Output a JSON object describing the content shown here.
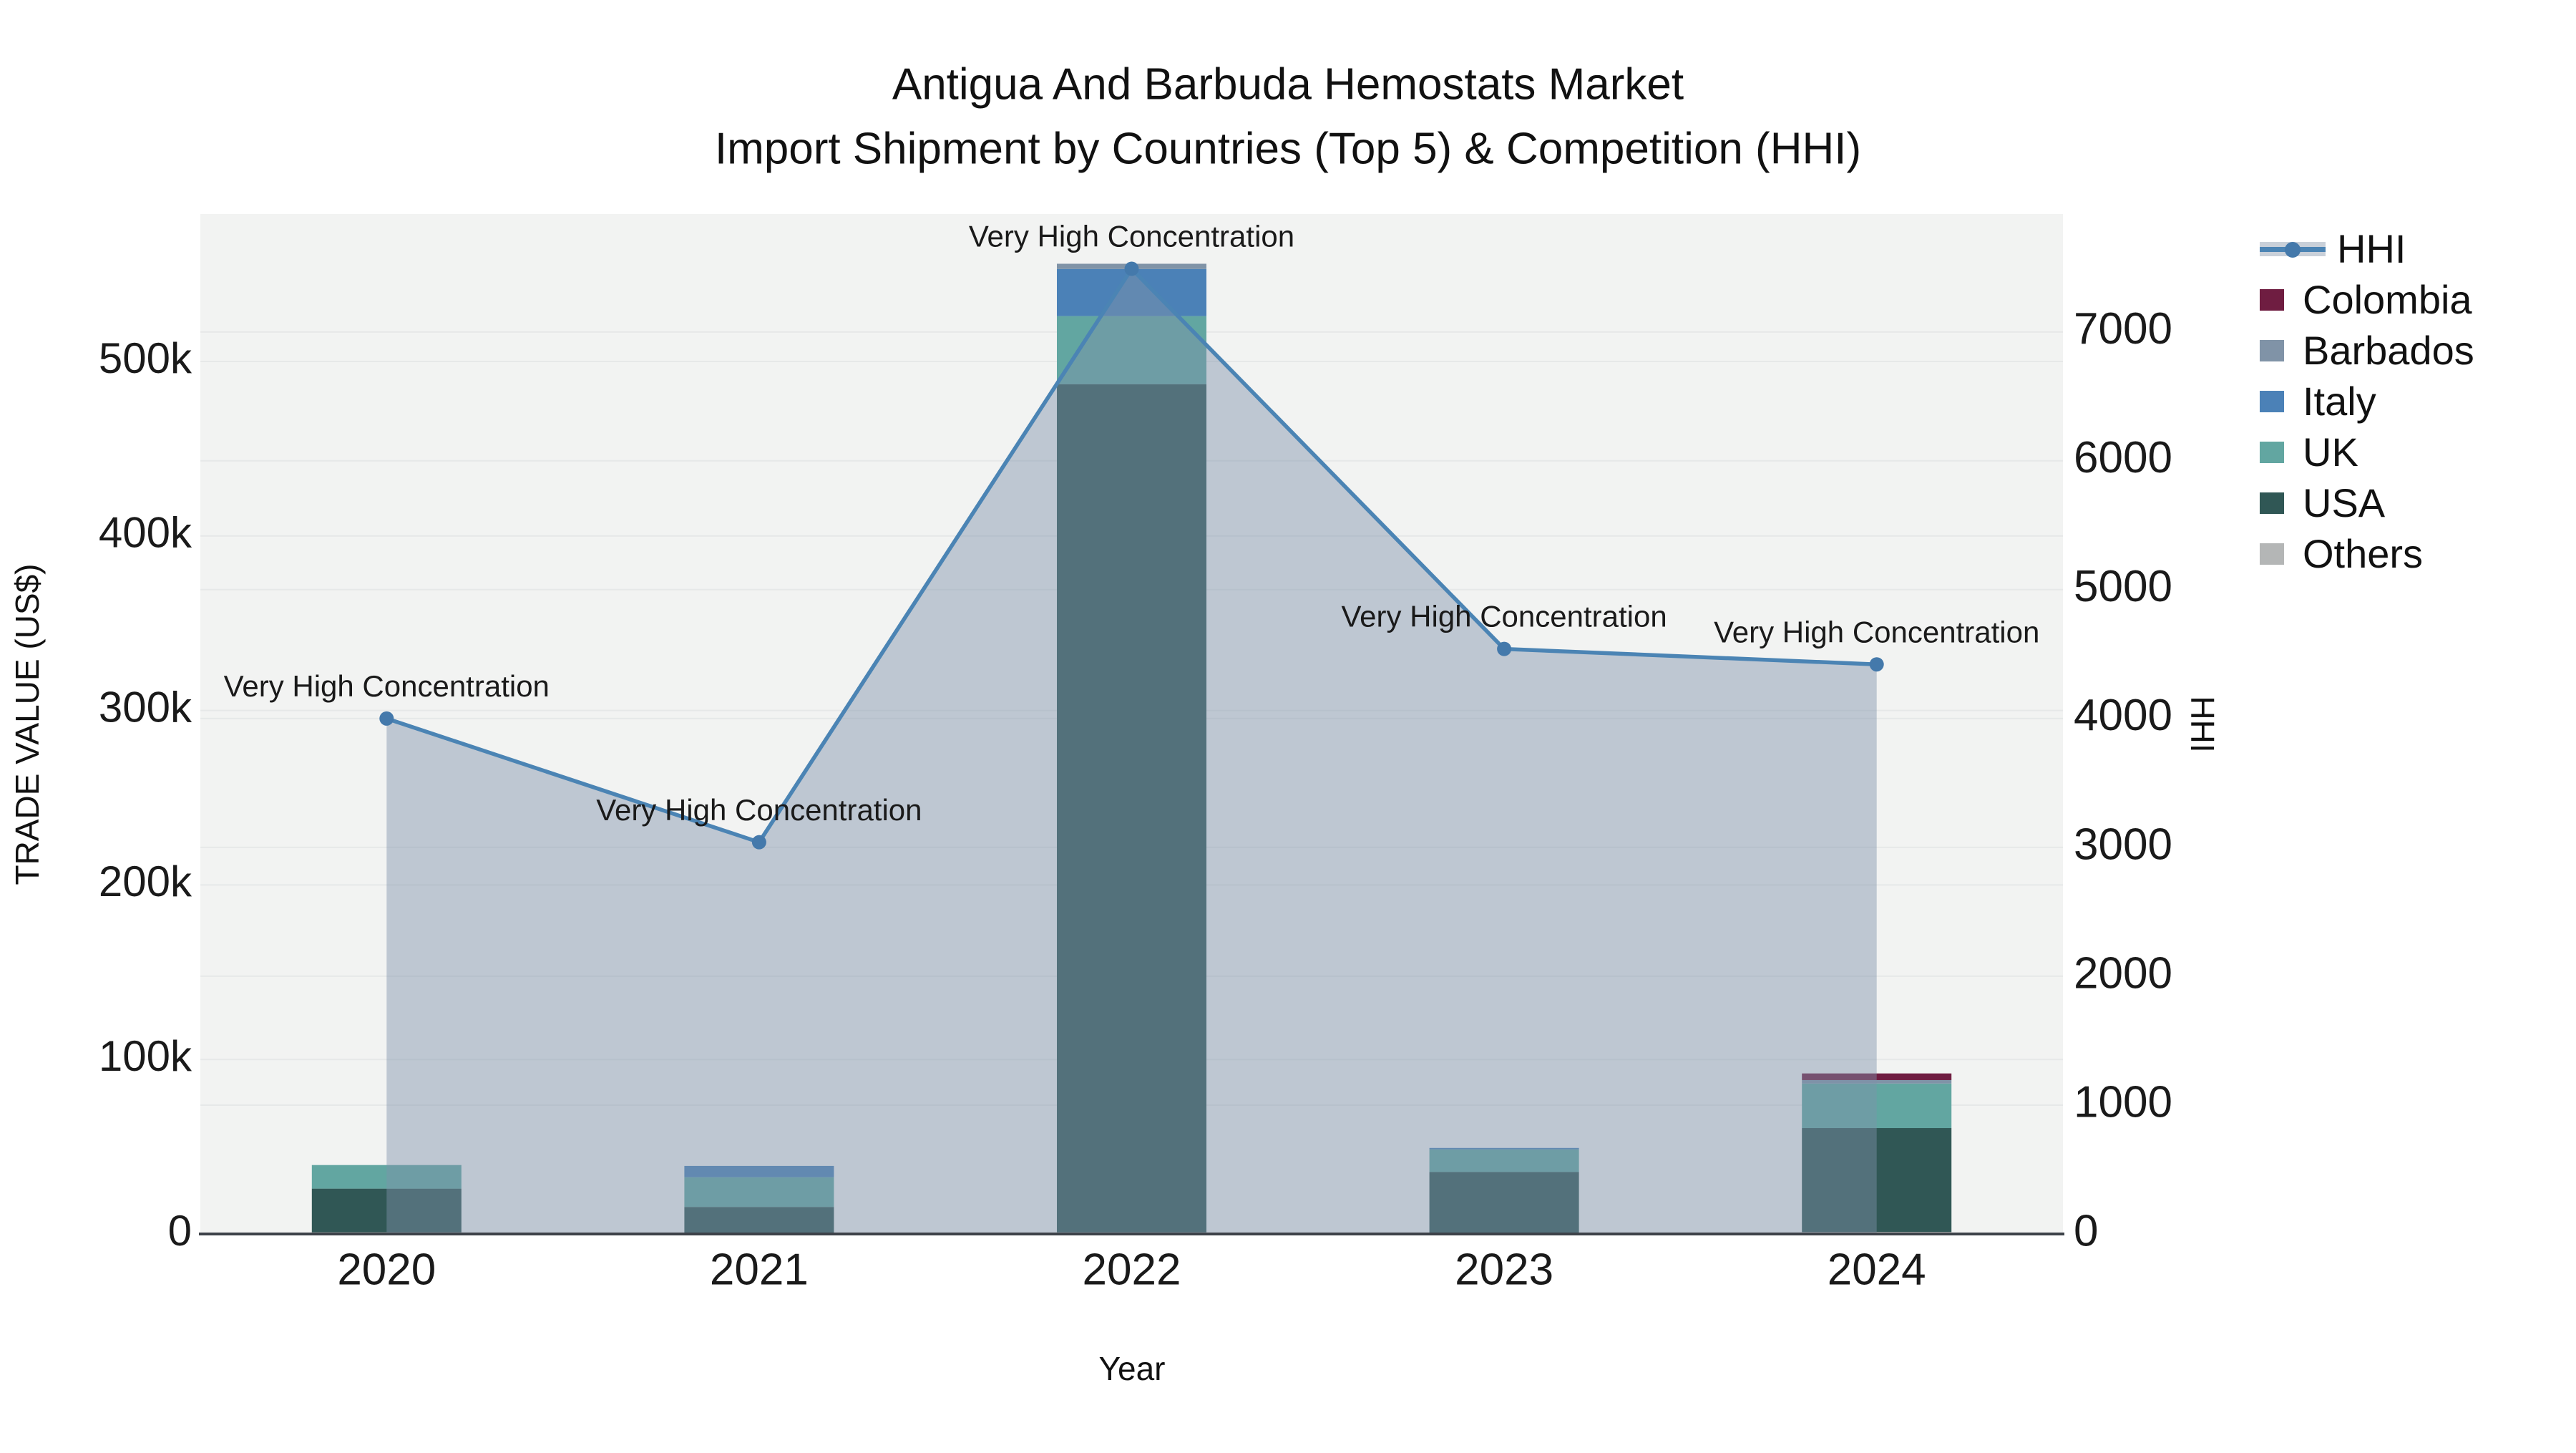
{
  "chart_data": {
    "type": "bar+line",
    "title": "Antigua And Barbuda Hemostats Market",
    "subtitle": "Import Shipment by Countries (Top 5) & Competition (HHI)",
    "x": [
      2020,
      2021,
      2022,
      2023,
      2024
    ],
    "stack_order": [
      "Others",
      "USA",
      "UK",
      "Italy",
      "Barbados",
      "Colombia"
    ],
    "series": [
      {
        "name": "Colombia",
        "values": [
          0,
          0,
          0,
          0,
          3800
        ]
      },
      {
        "name": "Barbados",
        "values": [
          0,
          0,
          3000,
          0,
          2000
        ]
      },
      {
        "name": "Italy",
        "values": [
          0,
          6500,
          27000,
          800,
          0
        ]
      },
      {
        "name": "UK",
        "values": [
          13500,
          17000,
          39000,
          13000,
          25500
        ]
      },
      {
        "name": "USA",
        "values": [
          25000,
          15000,
          486000,
          35000,
          59500
        ]
      },
      {
        "name": "Others",
        "values": [
          1000,
          500,
          1000,
          500,
          1200
        ]
      }
    ],
    "hhi": {
      "name": "HHI",
      "values": [
        4000,
        3040,
        7490,
        4540,
        4420
      ]
    },
    "annotations": [
      {
        "x": 2020,
        "text": "Very High Concentration"
      },
      {
        "x": 2021,
        "text": "Very High Concentration"
      },
      {
        "x": 2022,
        "text": "Very High Concentration"
      },
      {
        "x": 2023,
        "text": "Very High Concentration"
      },
      {
        "x": 2024,
        "text": "Very High Concentration"
      }
    ],
    "axes": {
      "x_title": "Year",
      "y_left_title": "TRADE VALUE (US$)",
      "y_right_title": "HHI",
      "x_tick_labels": [
        "2020",
        "2021",
        "2022",
        "2023",
        "2024"
      ],
      "y_left_tick_values": [
        0,
        100000,
        200000,
        300000,
        400000,
        500000
      ],
      "y_left_tick_labels": [
        "0",
        "100k",
        "200k",
        "300k",
        "400k",
        "500k"
      ],
      "y_right_tick_values": [
        0,
        1000,
        2000,
        3000,
        4000,
        5000,
        6000,
        7000
      ],
      "y_right_tick_labels": [
        "0",
        "1000",
        "2000",
        "3000",
        "4000",
        "5000",
        "6000",
        "7000"
      ],
      "ylim_left": [
        0,
        584500
      ],
      "ylim_right": [
        0,
        7915
      ],
      "grid": true,
      "legend_position": "right"
    },
    "legend_items": [
      "HHI",
      "Colombia",
      "Barbados",
      "Italy",
      "UK",
      "USA",
      "Others"
    ],
    "colors": {
      "Colombia": "#6f1d41",
      "Barbados": "#8093a7",
      "Italy": "#4b81b7",
      "UK": "#62a6a1",
      "USA": "#305755",
      "Others": "#b4b6b6",
      "hhi_line": "#4b84b4",
      "hhi_marker": "#4479ab",
      "area_fill": "rgba(127,146,170,0.45)",
      "legend_band": "#c9d0d9",
      "plot_bg": "#f2f3f2",
      "gridline": "#e6e8e8",
      "axis_line": "#3d4249",
      "text": "#1a1a1a"
    }
  }
}
